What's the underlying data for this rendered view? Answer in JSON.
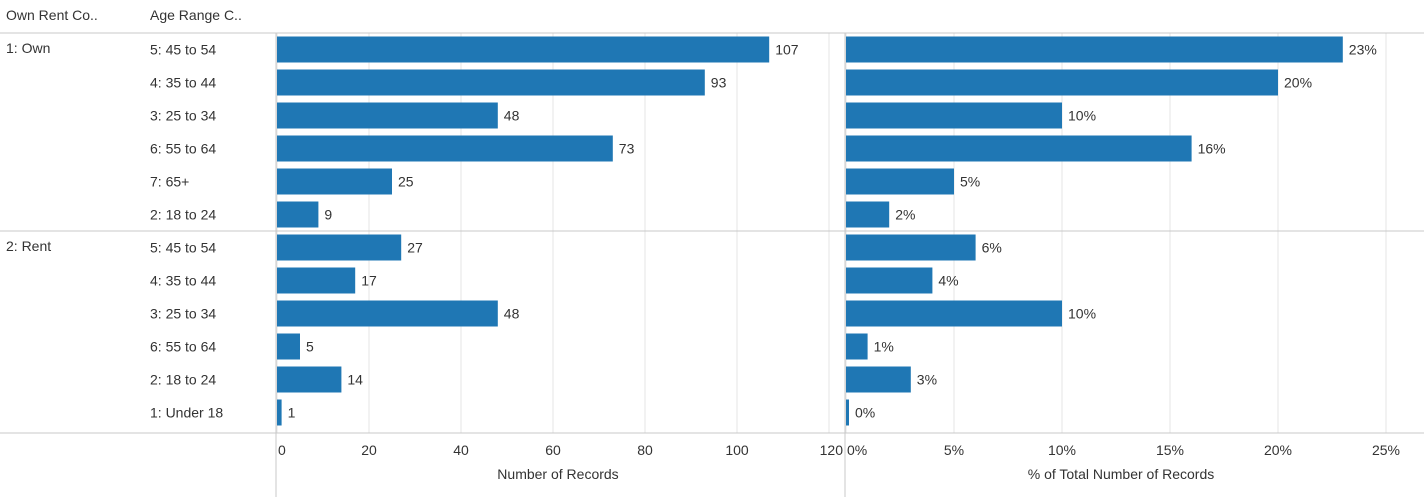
{
  "headers": {
    "group": "Own Rent Co..",
    "category": "Age Range C.."
  },
  "colors": {
    "bar": "#1f77b4",
    "gridline": "#e6e6e6",
    "separator": "#c8c8c8",
    "text": "#333333"
  },
  "chart_data": [
    {
      "type": "bar",
      "orientation": "horizontal",
      "xlabel": "Number of Records",
      "xlim": [
        0,
        120
      ],
      "ticks": [
        "0",
        "20",
        "40",
        "60",
        "80",
        "100",
        "120"
      ],
      "groups": [
        {
          "name": "1: Own",
          "categories": [
            "5: 45 to 54",
            "4: 35 to 44",
            "3: 25 to 34",
            "6: 55 to 64",
            "7: 65+",
            "2: 18 to 24"
          ],
          "values": [
            107,
            93,
            48,
            73,
            25,
            9
          ],
          "labels": [
            "107",
            "93",
            "48",
            "73",
            "25",
            "9"
          ]
        },
        {
          "name": "2: Rent",
          "categories": [
            "5: 45 to 54",
            "4: 35 to 44",
            "3: 25 to 34",
            "6: 55 to 64",
            "2: 18 to 24",
            "1: Under 18"
          ],
          "values": [
            27,
            17,
            48,
            5,
            14,
            1
          ],
          "labels": [
            "27",
            "17",
            "48",
            "5",
            "14",
            "1"
          ]
        }
      ]
    },
    {
      "type": "bar",
      "orientation": "horizontal",
      "xlabel": "% of Total Number of Records",
      "xlim": [
        0,
        25
      ],
      "ticks": [
        "0%",
        "5%",
        "10%",
        "15%",
        "20%",
        "25%"
      ],
      "groups": [
        {
          "name": "1: Own",
          "values": [
            23,
            20,
            10,
            16,
            5,
            2
          ],
          "labels": [
            "23%",
            "20%",
            "10%",
            "16%",
            "5%",
            "2%"
          ]
        },
        {
          "name": "2: Rent",
          "values": [
            6,
            4,
            10,
            1,
            3,
            0
          ],
          "labels": [
            "6%",
            "4%",
            "10%",
            "1%",
            "3%",
            "0%"
          ]
        }
      ]
    }
  ]
}
